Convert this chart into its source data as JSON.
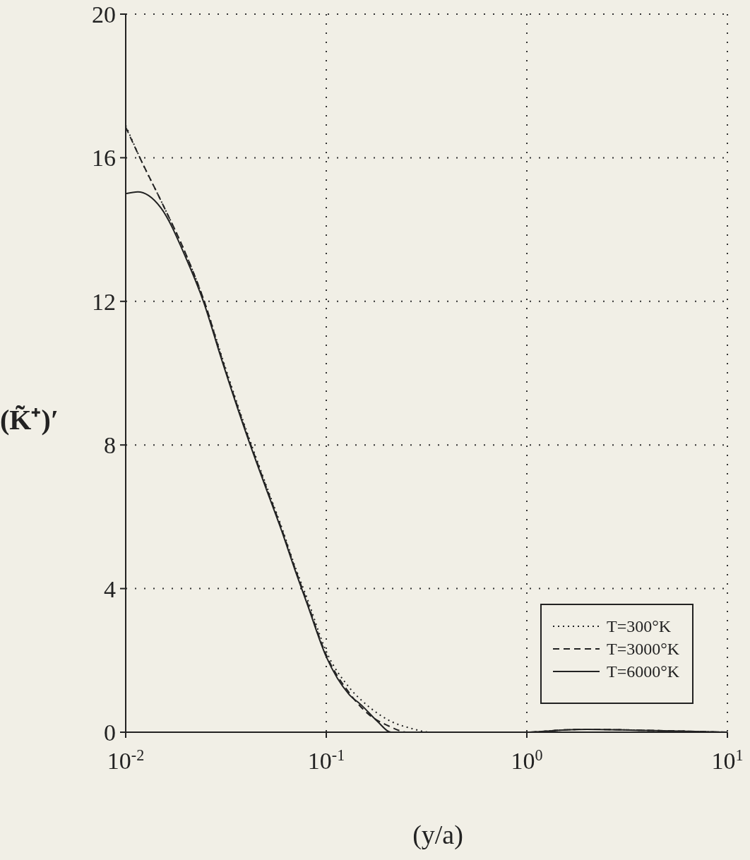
{
  "chart_data": {
    "type": "line",
    "xlabel": "(y/a)",
    "ylabel": "(K̃⁺)′",
    "log": "x",
    "xlim": [
      0.01,
      10
    ],
    "xticks": [
      {
        "value": 0.01,
        "label": "10$^{-2}$"
      },
      {
        "value": 0.1,
        "label": "10$^{-1}$"
      },
      {
        "value": 1,
        "label": "10$^{0}$"
      },
      {
        "value": 10,
        "label": "10$^{1}$"
      }
    ],
    "ylim": [
      0,
      20
    ],
    "yticks": [
      0,
      4,
      8,
      12,
      16,
      20
    ],
    "grid": true,
    "legend": "bottom right",
    "marker": "none",
    "series": [
      {
        "name": "T=300°K",
        "color": "#222222",
        "line_style": "dotted",
        "x": [
          0.01,
          0.012,
          0.015,
          0.02,
          0.025,
          0.03,
          0.04,
          0.05,
          0.06,
          0.07,
          0.08,
          0.1,
          0.13,
          0.16,
          0.216,
          0.26,
          0.33,
          0.5,
          1,
          1.5,
          2,
          4,
          9.5
        ],
        "values": [
          16.9,
          15.9,
          14.8,
          13.3,
          11.9,
          10.5,
          8.4,
          6.9,
          5.7,
          4.6,
          3.75,
          2.25,
          1.25,
          0.75,
          0.27,
          0.12,
          0,
          0,
          0,
          0.06,
          0.08,
          0.05,
          0
        ]
      },
      {
        "name": "T=3000°K",
        "color": "#222222",
        "line_style": "dashed",
        "x": [
          0.01,
          0.012,
          0.015,
          0.02,
          0.025,
          0.03,
          0.04,
          0.05,
          0.06,
          0.07,
          0.08,
          0.1,
          0.13,
          0.165,
          0.2,
          0.255,
          0.5,
          1,
          1.5,
          2,
          4,
          10
        ],
        "values": [
          16.85,
          15.9,
          14.8,
          13.3,
          11.9,
          10.45,
          8.35,
          6.85,
          5.65,
          4.55,
          3.65,
          2.15,
          1.1,
          0.47,
          0.2,
          0,
          0,
          0,
          0.06,
          0.08,
          0.05,
          0
        ]
      },
      {
        "name": "T=6000°K",
        "color": "#222222",
        "line_style": "solid",
        "x": [
          0.01,
          0.0115,
          0.013,
          0.015,
          0.02,
          0.0244,
          0.03,
          0.04,
          0.05,
          0.06,
          0.07,
          0.08,
          0.1,
          0.13,
          0.15,
          0.18,
          0.21,
          0.5,
          1,
          1.5,
          2,
          4,
          10
        ],
        "values": [
          15,
          15.05,
          14.95,
          14.6,
          13.2,
          12,
          10.4,
          8.3,
          6.8,
          5.6,
          4.5,
          3.6,
          2.1,
          1.05,
          0.75,
          0.3,
          0,
          0,
          0,
          0.06,
          0.08,
          0.05,
          0
        ]
      }
    ]
  }
}
